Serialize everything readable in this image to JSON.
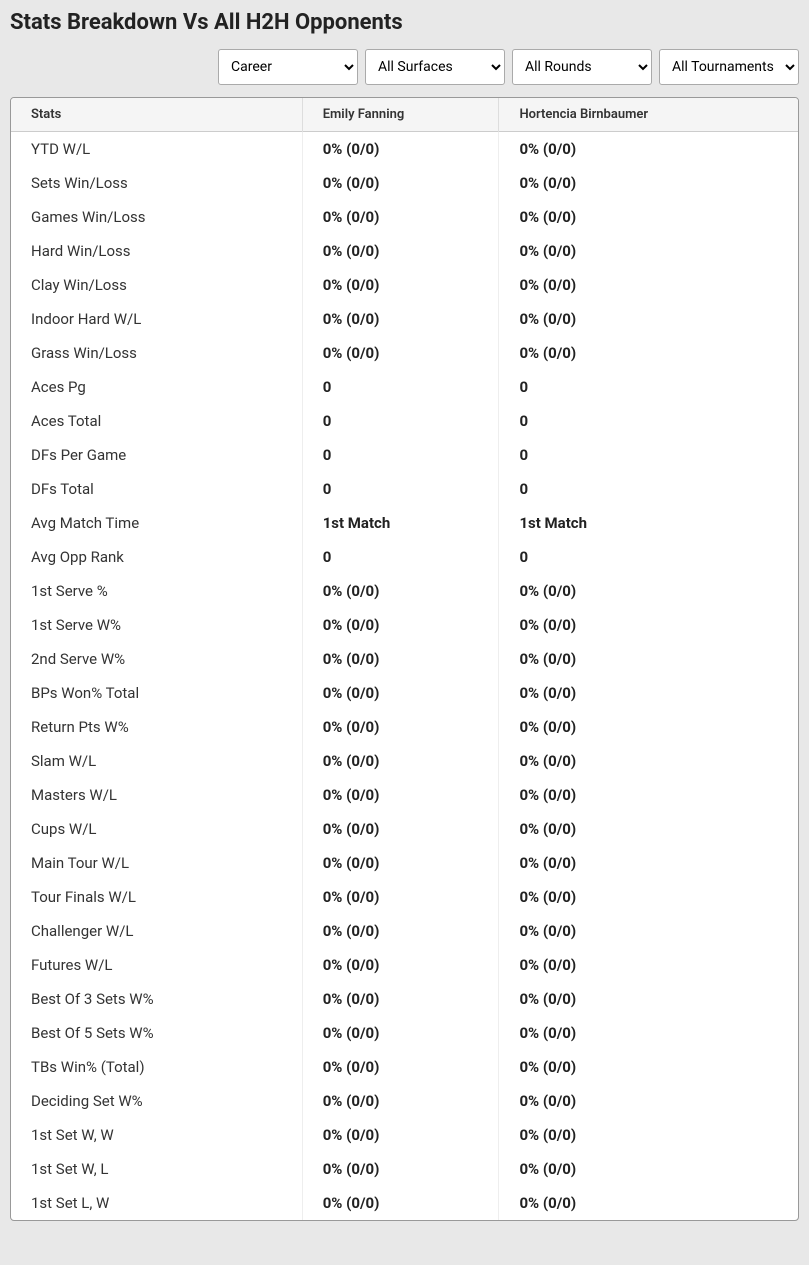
{
  "title": "Stats Breakdown Vs All H2H Opponents",
  "filters": {
    "career": {
      "selected": "Career"
    },
    "surfaces": {
      "selected": "All Surfaces"
    },
    "rounds": {
      "selected": "All Rounds"
    },
    "tournaments": {
      "selected": "All Tournaments"
    }
  },
  "columns": {
    "stats": "Stats",
    "player1": "Emily Fanning",
    "player2": "Hortencia Birnbaumer"
  },
  "rows": [
    {
      "label": "YTD W/L",
      "p1": "0% (0/0)",
      "p2": "0% (0/0)"
    },
    {
      "label": "Sets Win/Loss",
      "p1": "0% (0/0)",
      "p2": "0% (0/0)"
    },
    {
      "label": "Games Win/Loss",
      "p1": "0% (0/0)",
      "p2": "0% (0/0)"
    },
    {
      "label": "Hard Win/Loss",
      "p1": "0% (0/0)",
      "p2": "0% (0/0)"
    },
    {
      "label": "Clay Win/Loss",
      "p1": "0% (0/0)",
      "p2": "0% (0/0)"
    },
    {
      "label": "Indoor Hard W/L",
      "p1": "0% (0/0)",
      "p2": "0% (0/0)"
    },
    {
      "label": "Grass Win/Loss",
      "p1": "0% (0/0)",
      "p2": "0% (0/0)"
    },
    {
      "label": "Aces Pg",
      "p1": "0",
      "p2": "0"
    },
    {
      "label": "Aces Total",
      "p1": "0",
      "p2": "0"
    },
    {
      "label": "DFs Per Game",
      "p1": "0",
      "p2": "0"
    },
    {
      "label": "DFs Total",
      "p1": "0",
      "p2": "0"
    },
    {
      "label": "Avg Match Time",
      "p1": "1st Match",
      "p2": "1st Match"
    },
    {
      "label": "Avg Opp Rank",
      "p1": "0",
      "p2": "0"
    },
    {
      "label": "1st Serve %",
      "p1": "0% (0/0)",
      "p2": "0% (0/0)"
    },
    {
      "label": "1st Serve W%",
      "p1": "0% (0/0)",
      "p2": "0% (0/0)"
    },
    {
      "label": "2nd Serve W%",
      "p1": "0% (0/0)",
      "p2": "0% (0/0)"
    },
    {
      "label": "BPs Won% Total",
      "p1": "0% (0/0)",
      "p2": "0% (0/0)"
    },
    {
      "label": "Return Pts W%",
      "p1": "0% (0/0)",
      "p2": "0% (0/0)"
    },
    {
      "label": "Slam W/L",
      "p1": "0% (0/0)",
      "p2": "0% (0/0)"
    },
    {
      "label": "Masters W/L",
      "p1": "0% (0/0)",
      "p2": "0% (0/0)"
    },
    {
      "label": "Cups W/L",
      "p1": "0% (0/0)",
      "p2": "0% (0/0)"
    },
    {
      "label": "Main Tour W/L",
      "p1": "0% (0/0)",
      "p2": "0% (0/0)"
    },
    {
      "label": "Tour Finals W/L",
      "p1": "0% (0/0)",
      "p2": "0% (0/0)"
    },
    {
      "label": "Challenger W/L",
      "p1": "0% (0/0)",
      "p2": "0% (0/0)"
    },
    {
      "label": "Futures W/L",
      "p1": "0% (0/0)",
      "p2": "0% (0/0)"
    },
    {
      "label": "Best Of 3 Sets W%",
      "p1": "0% (0/0)",
      "p2": "0% (0/0)"
    },
    {
      "label": "Best Of 5 Sets W%",
      "p1": "0% (0/0)",
      "p2": "0% (0/0)"
    },
    {
      "label": "TBs Win% (Total)",
      "p1": "0% (0/0)",
      "p2": "0% (0/0)"
    },
    {
      "label": "Deciding Set W%",
      "p1": "0% (0/0)",
      "p2": "0% (0/0)"
    },
    {
      "label": "1st Set W, W",
      "p1": "0% (0/0)",
      "p2": "0% (0/0)"
    },
    {
      "label": "1st Set W, L",
      "p1": "0% (0/0)",
      "p2": "0% (0/0)"
    },
    {
      "label": "1st Set L, W",
      "p1": "0% (0/0)",
      "p2": "0% (0/0)"
    }
  ]
}
